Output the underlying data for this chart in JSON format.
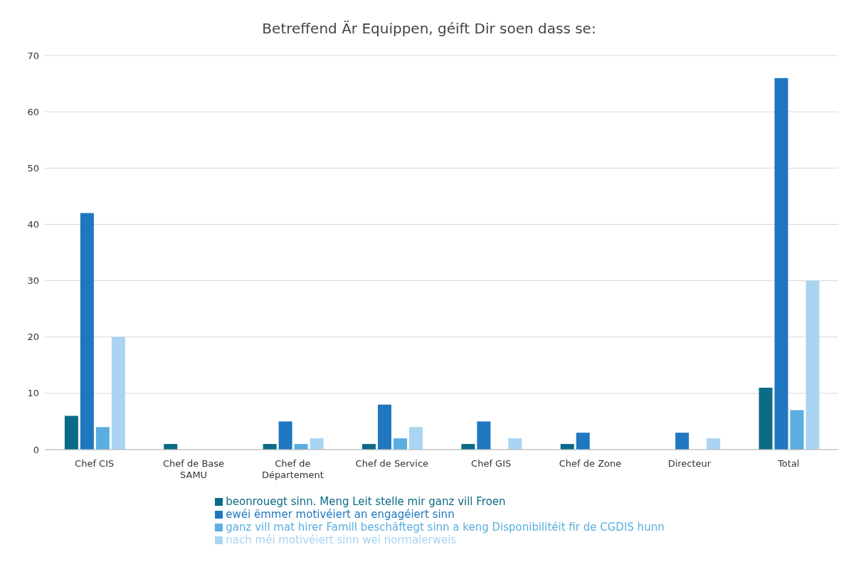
{
  "chart_data": {
    "type": "bar",
    "title": "Betreffend Är Equippen, géift Dir soen dass se:",
    "categories": [
      "Chef CIS",
      "Chef de Base SAMU",
      "Chef de Département",
      "Chef de Service",
      "Chef GIS",
      "Chef de Zone",
      "Directeur",
      "Total"
    ],
    "series": [
      {
        "name": "beonrouegt sinn. Meng Leit stelle mir ganz vill Froen",
        "color": "#0b6a86",
        "values": [
          6,
          1,
          1,
          1,
          1,
          1,
          0,
          11
        ]
      },
      {
        "name": "ewéi ëmmer motivéiert an engagéiert sinn",
        "color": "#1f77c0",
        "values": [
          42,
          0,
          5,
          8,
          5,
          3,
          3,
          66
        ]
      },
      {
        "name": "ganz vill mat hirer Famill beschäftegt sinn a keng Disponibilitéit fir de CGDIS hunn",
        "color": "#5aaee0",
        "values": [
          4,
          0,
          1,
          2,
          0,
          0,
          0,
          7
        ]
      },
      {
        "name": "nach méi motivéiert sinn wei normalerweis",
        "color": "#a9d4f2",
        "values": [
          20,
          0,
          2,
          4,
          2,
          0,
          2,
          30
        ]
      }
    ],
    "ylim": [
      0,
      70
    ],
    "yticks": [
      0,
      10,
      20,
      30,
      40,
      50,
      60,
      70
    ],
    "grid": "y",
    "legend": "bottom"
  }
}
